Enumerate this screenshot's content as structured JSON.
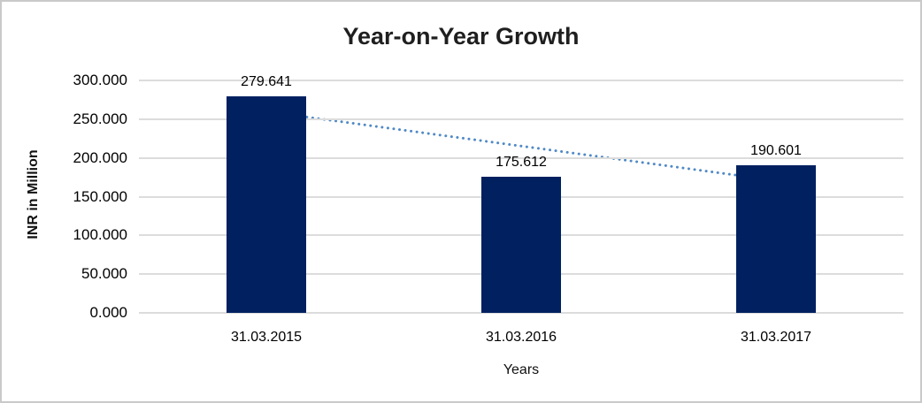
{
  "frame": {
    "background": "#ffffff",
    "border_color": "#c9c9c9"
  },
  "chart_data": {
    "type": "bar",
    "title": "Year-on-Year Growth",
    "xlabel": "Years",
    "ylabel": "INR in Million",
    "categories": [
      "31.03.2015",
      "31.03.2016",
      "31.03.2017"
    ],
    "values": [
      279.641,
      175.612,
      190.601
    ],
    "data_labels": [
      "279.641",
      "175.612",
      "190.601"
    ],
    "y_ticks": [
      {
        "label": "300.000",
        "value": 300
      },
      {
        "label": "250.000",
        "value": 250
      },
      {
        "label": "200.000",
        "value": 200
      },
      {
        "label": "150.000",
        "value": 150
      },
      {
        "label": "100.000",
        "value": 100
      },
      {
        "label": "50.000",
        "value": 50
      },
      {
        "label": "0.000",
        "value": 0
      }
    ],
    "ylim": [
      0,
      300
    ],
    "grid": true,
    "legend": false,
    "bar_color": "#002060",
    "gridline_color": "#dcdcdc",
    "trendline": {
      "type": "linear",
      "style": "dotted",
      "color": "#5089c6"
    }
  }
}
